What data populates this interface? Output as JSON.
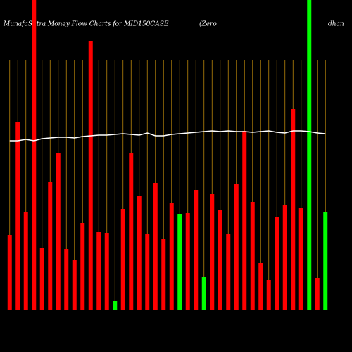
{
  "chart_data": {
    "type": "bar",
    "title": "MunafaSutra  Money Flow  Charts for MID150CASE",
    "subtitle": "(Zero",
    "title_right": "dhan",
    "categories": [
      null,
      null,
      null,
      null,
      null,
      null,
      null,
      null,
      null,
      null,
      null,
      null,
      null,
      null,
      null,
      null,
      null,
      null,
      null,
      null,
      null,
      null,
      null,
      null,
      null,
      null,
      null,
      null,
      null,
      null,
      null,
      null,
      null,
      null,
      null,
      null,
      null,
      null,
      null,
      null
    ],
    "values": [
      106,
      266,
      139,
      440,
      88,
      182,
      222,
      87,
      70,
      123,
      382,
      110,
      109,
      12,
      143,
      223,
      161,
      108,
      180,
      100,
      151,
      136,
      137,
      170,
      47,
      165,
      142,
      107,
      178,
      254,
      153,
      67,
      42,
      132,
      149,
      285,
      145,
      440,
      45,
      139
    ],
    "colors": [
      "#ff0000",
      "#ff0000",
      "#ff0000",
      "#ff0000",
      "#ff0000",
      "#ff0000",
      "#ff0000",
      "#ff0000",
      "#ff0000",
      "#ff0000",
      "#ff0000",
      "#ff0000",
      "#ff0000",
      "#00ff00",
      "#ff0000",
      "#ff0000",
      "#ff0000",
      "#ff0000",
      "#ff0000",
      "#ff0000",
      "#ff0000",
      "#00ff00",
      "#ff0000",
      "#ff0000",
      "#00ff00",
      "#ff0000",
      "#ff0000",
      "#ff0000",
      "#ff0000",
      "#ff0000",
      "#ff0000",
      "#ff0000",
      "#ff0000",
      "#ff0000",
      "#ff0000",
      "#ff0000",
      "#ff0000",
      "#00ff00",
      "#ff0000",
      "#00ff00"
    ],
    "line": {
      "color": "#ffffff",
      "values": [
        240,
        240,
        242,
        240,
        243,
        244,
        245,
        245,
        244,
        246,
        247,
        248,
        248,
        249,
        250,
        249,
        248,
        251,
        247,
        247,
        249,
        250,
        251,
        252,
        253,
        254,
        253,
        254,
        253,
        253,
        252,
        253,
        254,
        252,
        251,
        254,
        254,
        253,
        251,
        250
      ]
    },
    "ylim": [
      0,
      440
    ],
    "guide_color": "#b8860b"
  }
}
